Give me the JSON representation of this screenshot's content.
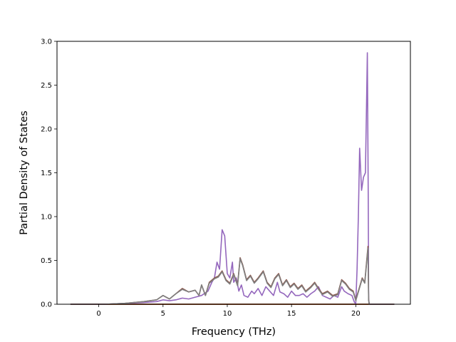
{
  "chart_data": {
    "type": "line",
    "title": "",
    "xlabel": "Frequency (THz)",
    "ylabel": "Partial Density of States",
    "xlim": [
      -3.25,
      24.25
    ],
    "ylim": [
      0.0,
      3.0
    ],
    "xticks": [
      0,
      5,
      10,
      15,
      20
    ],
    "xtick_labels": [
      "0",
      "5",
      "10",
      "15",
      "20"
    ],
    "yticks": [
      0.0,
      0.5,
      1.0,
      1.5,
      2.0,
      2.5,
      3.0
    ],
    "ytick_labels": [
      "0.0",
      "0.5",
      "1.0",
      "1.5",
      "2.0",
      "2.5",
      "3.0"
    ],
    "grid": false,
    "legend": "none",
    "series": [
      {
        "color": "#1f77b4",
        "points": [
          [
            -2.2,
            0.0
          ],
          [
            23.0,
            0.0
          ]
        ]
      },
      {
        "color": "#ff7f0e",
        "points": [
          [
            -2.2,
            0.0
          ],
          [
            23.0,
            0.0
          ]
        ]
      },
      {
        "color": "#2ca02c",
        "points": [
          [
            -2.2,
            0.0
          ],
          [
            23.0,
            0.0
          ]
        ]
      },
      {
        "color": "#d62728",
        "points": [
          [
            -2.2,
            0.0
          ],
          [
            23.0,
            0.0
          ]
        ]
      },
      {
        "color": "#9467bd",
        "points": [
          [
            -2.2,
            0.0
          ],
          [
            0.5,
            0.0
          ],
          [
            2.0,
            0.01
          ],
          [
            3.5,
            0.02
          ],
          [
            4.5,
            0.03
          ],
          [
            5.0,
            0.05
          ],
          [
            5.5,
            0.04
          ],
          [
            6.0,
            0.05
          ],
          [
            6.5,
            0.07
          ],
          [
            7.0,
            0.06
          ],
          [
            7.5,
            0.08
          ],
          [
            8.0,
            0.1
          ],
          [
            8.5,
            0.15
          ],
          [
            8.8,
            0.25
          ],
          [
            9.0,
            0.3
          ],
          [
            9.2,
            0.48
          ],
          [
            9.4,
            0.4
          ],
          [
            9.6,
            0.85
          ],
          [
            9.8,
            0.78
          ],
          [
            10.0,
            0.35
          ],
          [
            10.2,
            0.3
          ],
          [
            10.4,
            0.48
          ],
          [
            10.5,
            0.25
          ],
          [
            10.7,
            0.3
          ],
          [
            10.9,
            0.15
          ],
          [
            11.1,
            0.22
          ],
          [
            11.3,
            0.1
          ],
          [
            11.6,
            0.08
          ],
          [
            11.9,
            0.15
          ],
          [
            12.1,
            0.12
          ],
          [
            12.4,
            0.18
          ],
          [
            12.7,
            0.1
          ],
          [
            13.0,
            0.2
          ],
          [
            13.3,
            0.15
          ],
          [
            13.6,
            0.1
          ],
          [
            13.9,
            0.25
          ],
          [
            14.1,
            0.14
          ],
          [
            14.4,
            0.12
          ],
          [
            14.7,
            0.08
          ],
          [
            15.0,
            0.15
          ],
          [
            15.3,
            0.1
          ],
          [
            15.6,
            0.1
          ],
          [
            15.9,
            0.12
          ],
          [
            16.2,
            0.08
          ],
          [
            16.5,
            0.12
          ],
          [
            16.8,
            0.15
          ],
          [
            17.1,
            0.2
          ],
          [
            17.4,
            0.1
          ],
          [
            17.7,
            0.08
          ],
          [
            18.0,
            0.06
          ],
          [
            18.3,
            0.1
          ],
          [
            18.6,
            0.08
          ],
          [
            18.9,
            0.2
          ],
          [
            19.1,
            0.15
          ],
          [
            19.4,
            0.12
          ],
          [
            19.7,
            0.1
          ],
          [
            19.9,
            0.02
          ],
          [
            20.0,
            0.01
          ],
          [
            20.1,
            0.4
          ],
          [
            20.2,
            1.0
          ],
          [
            20.3,
            1.78
          ],
          [
            20.45,
            1.3
          ],
          [
            20.6,
            1.45
          ],
          [
            20.75,
            1.5
          ],
          [
            20.85,
            2.4
          ],
          [
            20.9,
            2.87
          ],
          [
            20.97,
            1.2
          ],
          [
            21.0,
            0.05
          ],
          [
            21.05,
            0.0
          ],
          [
            23.0,
            0.0
          ]
        ]
      },
      {
        "color": "#8c564b",
        "points": [
          [
            -2.2,
            0.0
          ],
          [
            0.5,
            0.0
          ],
          [
            2.0,
            0.01
          ],
          [
            3.5,
            0.03
          ],
          [
            4.5,
            0.05
          ],
          [
            5.0,
            0.1
          ],
          [
            5.5,
            0.06
          ],
          [
            6.0,
            0.12
          ],
          [
            6.5,
            0.18
          ],
          [
            7.0,
            0.14
          ],
          [
            7.5,
            0.16
          ],
          [
            7.8,
            0.1
          ],
          [
            8.0,
            0.22
          ],
          [
            8.3,
            0.1
          ],
          [
            8.6,
            0.25
          ],
          [
            9.0,
            0.3
          ],
          [
            9.3,
            0.32
          ],
          [
            9.6,
            0.38
          ],
          [
            9.9,
            0.28
          ],
          [
            10.2,
            0.24
          ],
          [
            10.5,
            0.35
          ],
          [
            10.8,
            0.22
          ],
          [
            11.0,
            0.53
          ],
          [
            11.2,
            0.45
          ],
          [
            11.5,
            0.28
          ],
          [
            11.8,
            0.33
          ],
          [
            12.1,
            0.25
          ],
          [
            12.4,
            0.3
          ],
          [
            12.8,
            0.38
          ],
          [
            13.1,
            0.25
          ],
          [
            13.4,
            0.2
          ],
          [
            13.7,
            0.3
          ],
          [
            14.0,
            0.35
          ],
          [
            14.3,
            0.22
          ],
          [
            14.6,
            0.28
          ],
          [
            14.9,
            0.2
          ],
          [
            15.2,
            0.24
          ],
          [
            15.5,
            0.18
          ],
          [
            15.8,
            0.22
          ],
          [
            16.1,
            0.15
          ],
          [
            16.5,
            0.2
          ],
          [
            16.8,
            0.25
          ],
          [
            17.1,
            0.18
          ],
          [
            17.4,
            0.12
          ],
          [
            17.8,
            0.15
          ],
          [
            18.2,
            0.1
          ],
          [
            18.6,
            0.12
          ],
          [
            18.9,
            0.28
          ],
          [
            19.2,
            0.24
          ],
          [
            19.5,
            0.18
          ],
          [
            19.8,
            0.15
          ],
          [
            20.0,
            0.05
          ],
          [
            20.2,
            0.15
          ],
          [
            20.5,
            0.3
          ],
          [
            20.7,
            0.25
          ],
          [
            20.85,
            0.5
          ],
          [
            20.95,
            0.66
          ],
          [
            21.0,
            0.05
          ],
          [
            21.05,
            0.0
          ],
          [
            23.0,
            0.0
          ]
        ]
      },
      {
        "color": "#7f7f7f",
        "points": [
          [
            -2.2,
            0.0
          ],
          [
            0.5,
            0.0
          ],
          [
            2.0,
            0.01
          ],
          [
            3.5,
            0.03
          ],
          [
            4.5,
            0.05
          ],
          [
            5.0,
            0.1
          ],
          [
            5.5,
            0.06
          ],
          [
            6.0,
            0.12
          ],
          [
            6.5,
            0.17
          ],
          [
            7.0,
            0.14
          ],
          [
            7.5,
            0.16
          ],
          [
            7.8,
            0.1
          ],
          [
            8.0,
            0.22
          ],
          [
            8.3,
            0.1
          ],
          [
            8.6,
            0.24
          ],
          [
            9.0,
            0.29
          ],
          [
            9.3,
            0.31
          ],
          [
            9.6,
            0.37
          ],
          [
            9.9,
            0.27
          ],
          [
            10.2,
            0.23
          ],
          [
            10.5,
            0.34
          ],
          [
            10.8,
            0.21
          ],
          [
            11.0,
            0.52
          ],
          [
            11.2,
            0.44
          ],
          [
            11.5,
            0.27
          ],
          [
            11.8,
            0.32
          ],
          [
            12.1,
            0.24
          ],
          [
            12.4,
            0.29
          ],
          [
            12.8,
            0.37
          ],
          [
            13.1,
            0.24
          ],
          [
            13.4,
            0.19
          ],
          [
            13.7,
            0.29
          ],
          [
            14.0,
            0.34
          ],
          [
            14.3,
            0.21
          ],
          [
            14.6,
            0.27
          ],
          [
            14.9,
            0.19
          ],
          [
            15.2,
            0.23
          ],
          [
            15.5,
            0.17
          ],
          [
            15.8,
            0.21
          ],
          [
            16.1,
            0.14
          ],
          [
            16.5,
            0.19
          ],
          [
            16.8,
            0.24
          ],
          [
            17.1,
            0.17
          ],
          [
            17.4,
            0.11
          ],
          [
            17.8,
            0.14
          ],
          [
            18.2,
            0.09
          ],
          [
            18.6,
            0.11
          ],
          [
            18.9,
            0.27
          ],
          [
            19.2,
            0.23
          ],
          [
            19.5,
            0.17
          ],
          [
            19.8,
            0.14
          ],
          [
            20.0,
            0.04
          ],
          [
            20.2,
            0.14
          ],
          [
            20.5,
            0.29
          ],
          [
            20.7,
            0.24
          ],
          [
            20.85,
            0.48
          ],
          [
            20.95,
            0.64
          ],
          [
            21.0,
            0.05
          ],
          [
            21.05,
            0.0
          ],
          [
            23.0,
            0.0
          ]
        ]
      }
    ]
  }
}
